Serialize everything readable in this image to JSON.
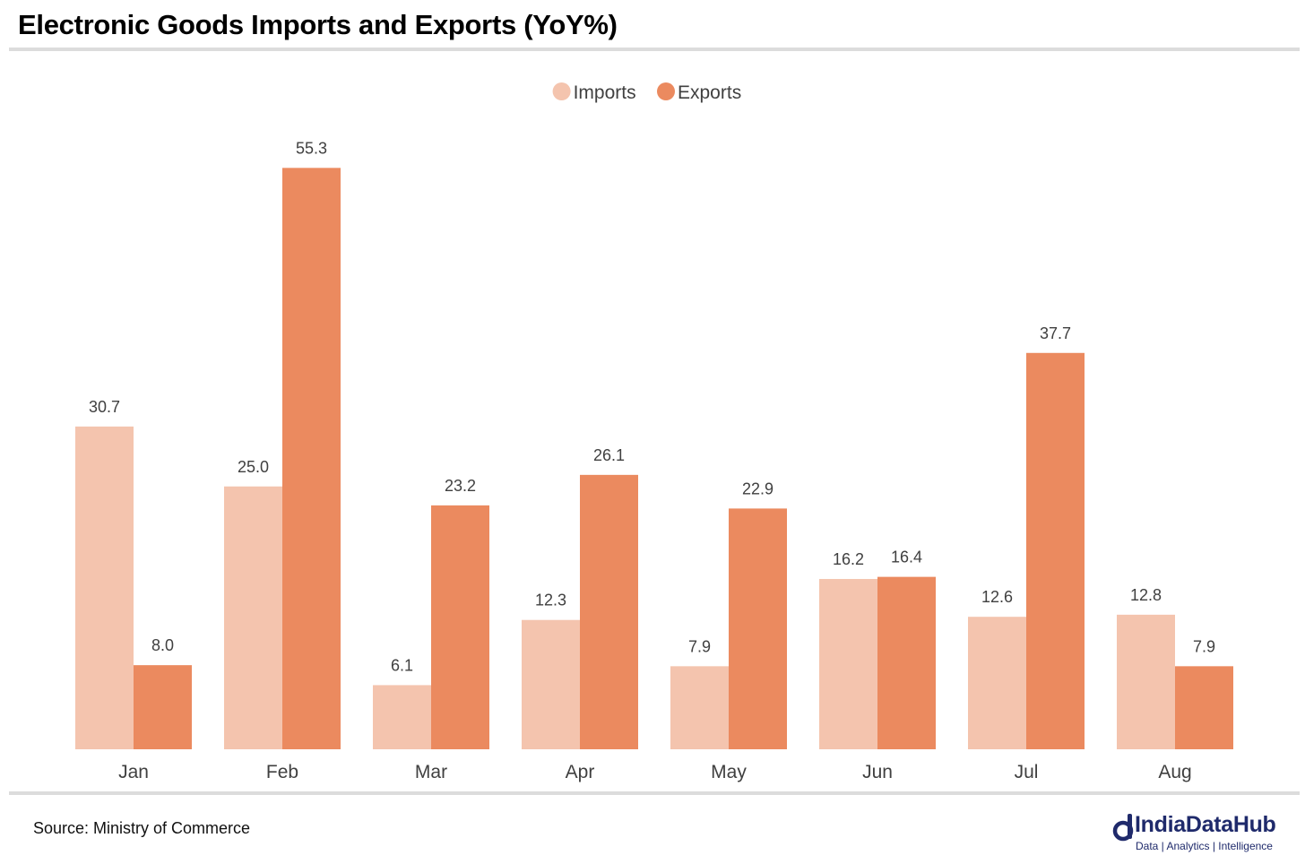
{
  "header": {
    "title": "Electronic Goods Imports and Exports (YoY%)"
  },
  "footer": {
    "source": "Source: Ministry of Commerce",
    "brand_name": "IndiaDataHub",
    "brand_tagline": "Data | Analytics | Intelligence"
  },
  "colors": {
    "imports": "#f4c4ae",
    "exports": "#eb8a5f",
    "label_text": "#404040",
    "brand": "#1f2a6b"
  },
  "chart_data": {
    "type": "bar",
    "title": "Electronic Goods Imports and Exports (YoY%)",
    "xlabel": "",
    "ylabel": "",
    "ylim": [
      0,
      60
    ],
    "grid": false,
    "legend_position": "top-center",
    "categories": [
      "Jan",
      "Feb",
      "Mar",
      "Apr",
      "May",
      "Jun",
      "Jul",
      "Aug"
    ],
    "series": [
      {
        "name": "Imports",
        "values": [
          30.7,
          25.0,
          6.1,
          12.3,
          7.9,
          16.2,
          12.6,
          12.8
        ]
      },
      {
        "name": "Exports",
        "values": [
          8.0,
          55.3,
          23.2,
          26.1,
          22.9,
          16.4,
          37.7,
          7.9
        ]
      }
    ],
    "data_labels": true,
    "label_format": "0.0"
  }
}
